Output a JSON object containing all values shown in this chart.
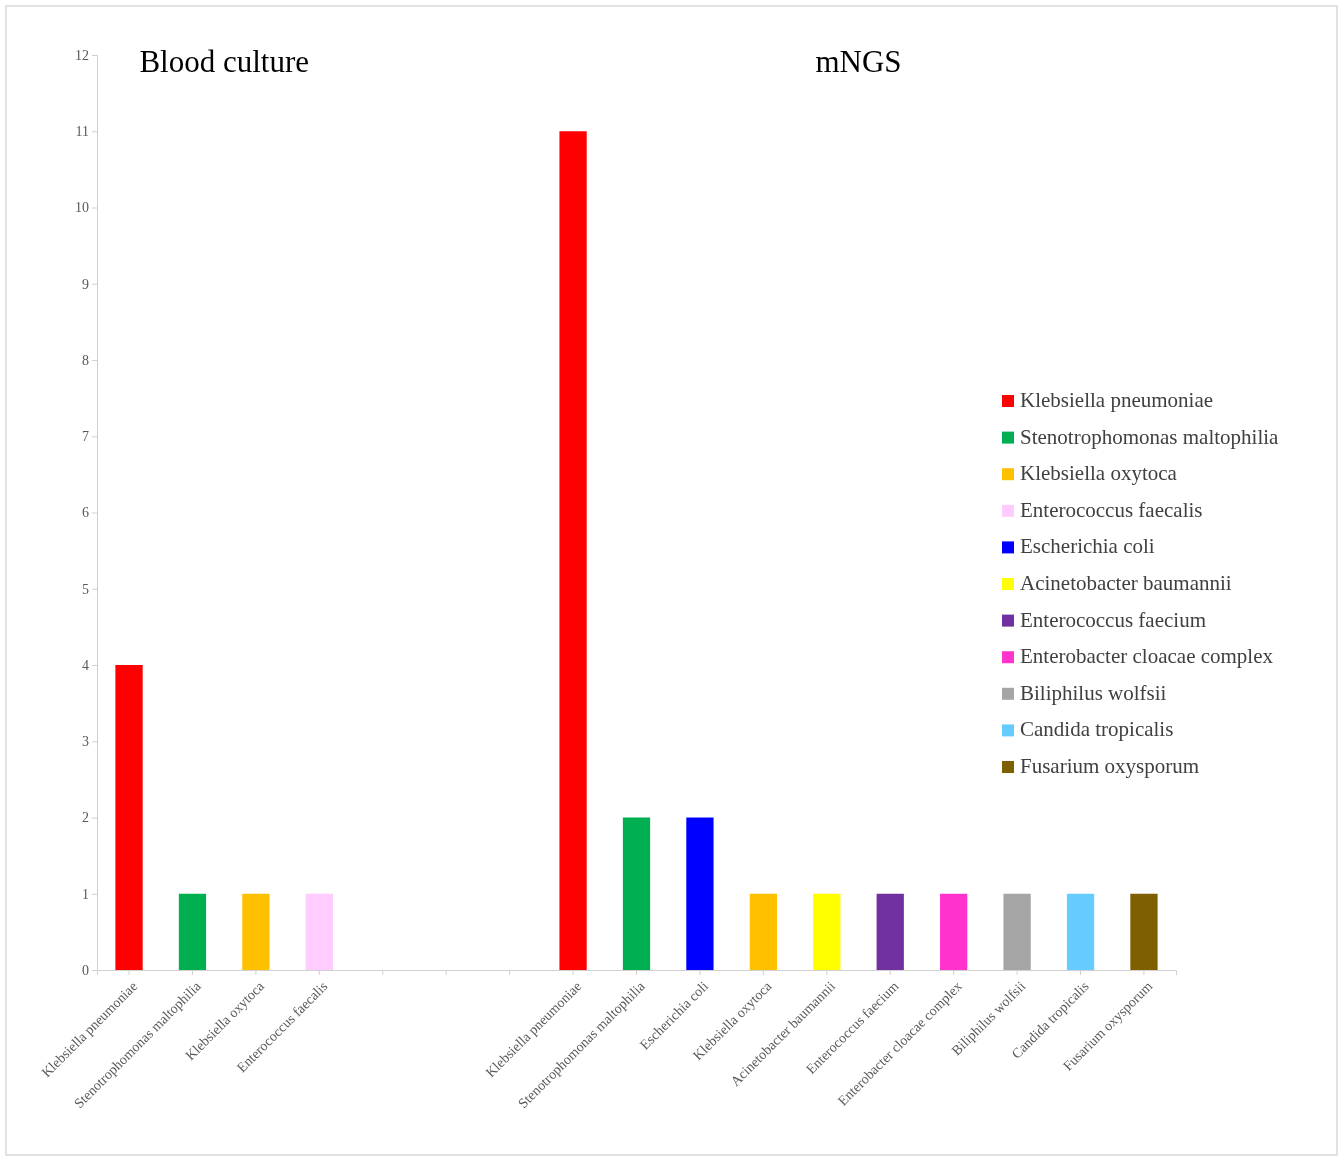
{
  "chart_data": {
    "type": "bar",
    "stacked": true,
    "legend": "right",
    "annotations": [
      "Blood culture",
      "mNGS"
    ],
    "categories": [
      "Klebsiella pneumoniae",
      "Stenotrophomonas maltophilia",
      "Klebsiella oxytoca",
      "Enterococcus faecalis",
      null,
      null,
      null,
      "Klebsiella pneumoniae",
      "Stenotrophomonas maltophilia",
      "Escherichia coli",
      "Klebsiella oxytoca",
      "Acinetobacter baumannii",
      "Enterococcus faecium",
      "Enterobacter cloacae complex",
      "Biliphilus wolfsii",
      "Candida tropicalis",
      "Fusarium oxysporum"
    ],
    "ylim": [
      0,
      12
    ],
    "yticks": [
      0,
      1,
      2,
      3,
      4,
      5,
      6,
      7,
      8,
      9,
      10,
      11,
      12
    ],
    "series": [
      {
        "name": "Klebsiella pneumoniae",
        "color": "#ff0000",
        "values": [
          4,
          null,
          null,
          null,
          null,
          null,
          null,
          11,
          null,
          null,
          null,
          null,
          null,
          null,
          null,
          null,
          null
        ]
      },
      {
        "name": "Stenotrophomonas maltophilia",
        "color": "#00b050",
        "values": [
          null,
          1,
          null,
          null,
          null,
          null,
          null,
          null,
          2,
          null,
          null,
          null,
          null,
          null,
          null,
          null,
          null
        ]
      },
      {
        "name": "Klebsiella oxytoca",
        "color": "#ffc000",
        "values": [
          null,
          null,
          1,
          null,
          null,
          null,
          null,
          null,
          null,
          null,
          1,
          null,
          null,
          null,
          null,
          null,
          null
        ]
      },
      {
        "name": "Enterococcus faecalis",
        "color": "#ffccff",
        "values": [
          null,
          null,
          null,
          1,
          null,
          null,
          null,
          null,
          null,
          null,
          null,
          null,
          null,
          null,
          null,
          null,
          null
        ]
      },
      {
        "name": "Escherichia coli",
        "color": "#0000ff",
        "values": [
          null,
          null,
          null,
          null,
          null,
          null,
          null,
          null,
          null,
          2,
          null,
          null,
          null,
          null,
          null,
          null,
          null
        ]
      },
      {
        "name": "Acinetobacter baumannii",
        "color": "#ffff00",
        "values": [
          null,
          null,
          null,
          null,
          null,
          null,
          null,
          null,
          null,
          null,
          null,
          1,
          null,
          null,
          null,
          null,
          null
        ]
      },
      {
        "name": "Enterococcus faecium",
        "color": "#7030a0",
        "values": [
          null,
          null,
          null,
          null,
          null,
          null,
          null,
          null,
          null,
          null,
          null,
          null,
          1,
          null,
          null,
          null,
          null
        ]
      },
      {
        "name": "Enterobacter cloacae complex",
        "color": "#ff33cc",
        "values": [
          null,
          null,
          null,
          null,
          null,
          null,
          null,
          null,
          null,
          null,
          null,
          null,
          null,
          1,
          null,
          null,
          null
        ]
      },
      {
        "name": "Biliphilus wolfsii",
        "color": "#a5a5a5",
        "values": [
          null,
          null,
          null,
          null,
          null,
          null,
          null,
          null,
          null,
          null,
          null,
          null,
          null,
          null,
          1,
          null,
          null
        ]
      },
      {
        "name": "Candida tropicalis",
        "color": "#66ccff",
        "values": [
          null,
          null,
          null,
          null,
          null,
          null,
          null,
          null,
          null,
          null,
          null,
          null,
          null,
          null,
          null,
          1,
          null
        ]
      },
      {
        "name": "Fusarium oxysporum",
        "color": "#7f6000",
        "values": [
          null,
          null,
          null,
          null,
          null,
          null,
          null,
          null,
          null,
          null,
          null,
          null,
          null,
          null,
          null,
          null,
          1
        ]
      }
    ]
  }
}
